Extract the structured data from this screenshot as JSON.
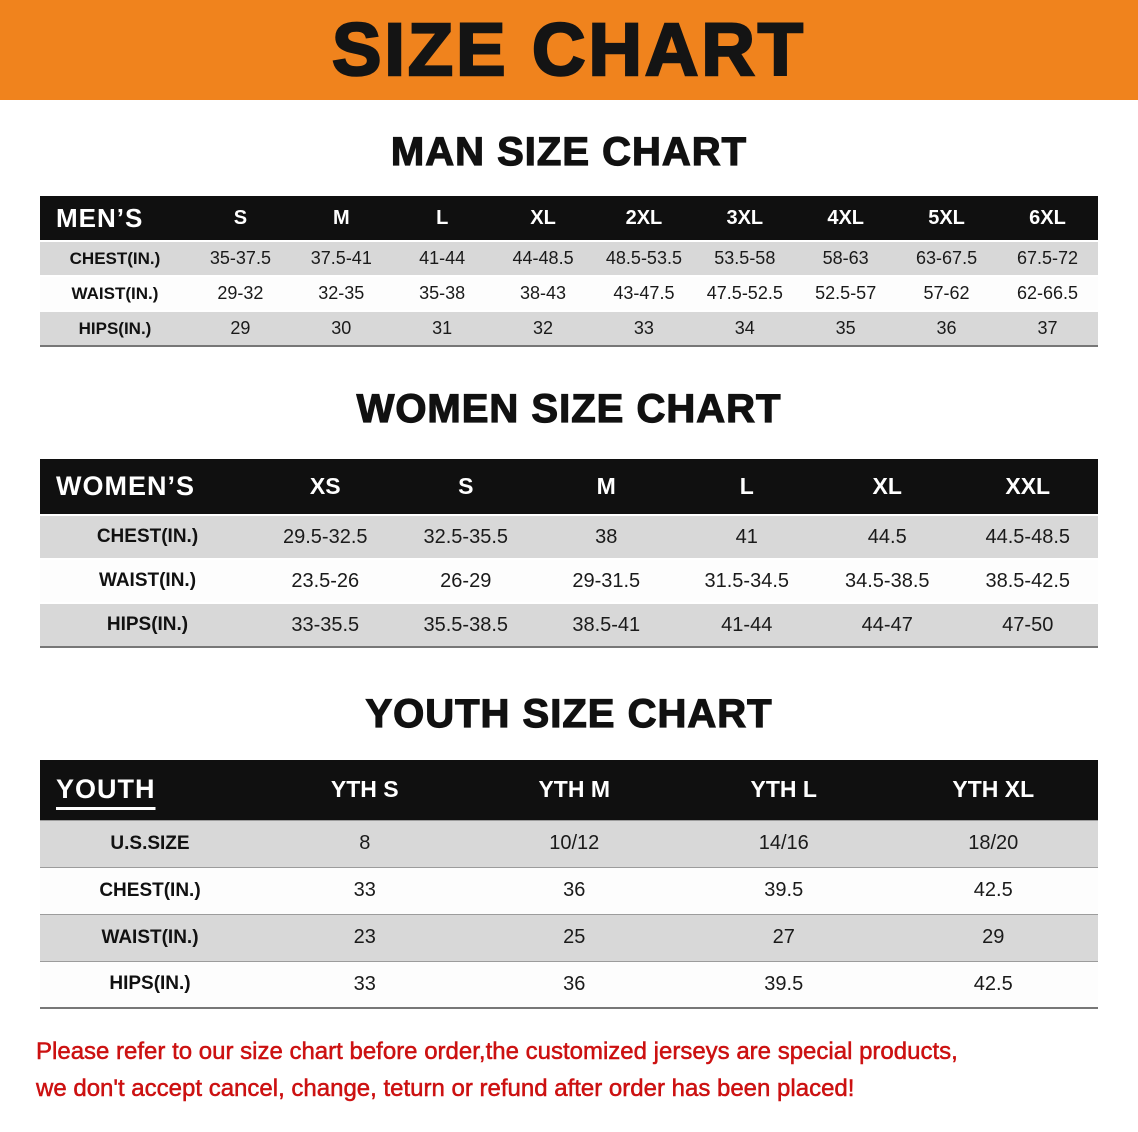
{
  "banner": {
    "title": "SIZE CHART"
  },
  "chart_data": [
    {
      "type": "table",
      "key": "men",
      "title": "MAN SIZE CHART",
      "corner_label": "MEN’S",
      "columns": [
        "S",
        "M",
        "L",
        "XL",
        "2XL",
        "3XL",
        "4XL",
        "5XL",
        "6XL"
      ],
      "rows": [
        {
          "label": "CHEST(IN.)",
          "values": [
            "35-37.5",
            "37.5-41",
            "41-44",
            "44-48.5",
            "48.5-53.5",
            "53.5-58",
            "58-63",
            "63-67.5",
            "67.5-72"
          ]
        },
        {
          "label": "WAIST(IN.)",
          "values": [
            "29-32",
            "32-35",
            "35-38",
            "38-43",
            "43-47.5",
            "47.5-52.5",
            "52.5-57",
            "57-62",
            "62-66.5"
          ]
        },
        {
          "label": "HIPS(IN.)",
          "values": [
            "29",
            "30",
            "31",
            "32",
            "33",
            "34",
            "35",
            "36",
            "37"
          ]
        }
      ]
    },
    {
      "type": "table",
      "key": "women",
      "title": "WOMEN SIZE CHART",
      "corner_label": "WOMEN’S",
      "columns": [
        "XS",
        "S",
        "M",
        "L",
        "XL",
        "XXL"
      ],
      "rows": [
        {
          "label": "CHEST(IN.)",
          "values": [
            "29.5-32.5",
            "32.5-35.5",
            "38",
            "41",
            "44.5",
            "44.5-48.5"
          ]
        },
        {
          "label": "WAIST(IN.)",
          "values": [
            "23.5-26",
            "26-29",
            "29-31.5",
            "31.5-34.5",
            "34.5-38.5",
            "38.5-42.5"
          ]
        },
        {
          "label": "HIPS(IN.)",
          "values": [
            "33-35.5",
            "35.5-38.5",
            "38.5-41",
            "41-44",
            "44-47",
            "47-50"
          ]
        }
      ]
    },
    {
      "type": "table",
      "key": "youth",
      "title": "YOUTH SIZE CHART",
      "corner_label": "YOUTH",
      "columns": [
        "YTH S",
        "YTH M",
        "YTH L",
        "YTH XL"
      ],
      "rows": [
        {
          "label": "U.S.SIZE",
          "values": [
            "8",
            "10/12",
            "14/16",
            "18/20"
          ]
        },
        {
          "label": "CHEST(IN.)",
          "values": [
            "33",
            "36",
            "39.5",
            "42.5"
          ]
        },
        {
          "label": "WAIST(IN.)",
          "values": [
            "23",
            "25",
            "27",
            "29"
          ]
        },
        {
          "label": "HIPS(IN.)",
          "values": [
            "33",
            "36",
            "39.5",
            "42.5"
          ]
        }
      ]
    }
  ],
  "disclaimer": {
    "line1": "Please refer to our size chart before order,the customized jerseys are special products,",
    "line2": "we don't accept cancel, change, teturn or refund after order has been placed!"
  },
  "colors": {
    "banner_bg": "#F0831D",
    "banner_text": "#141414",
    "table_header_bg": "#101010",
    "table_header_text": "#FFFFFF",
    "row_shaded": "#D8D8D8",
    "row_plain": "#FDFDFD",
    "disclaimer_text": "#CC1111"
  }
}
